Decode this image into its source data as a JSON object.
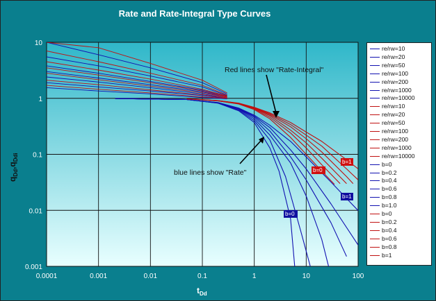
{
  "chart_data": {
    "type": "line",
    "title": "Rate and Rate-Integral Type Curves",
    "xlabel": "t",
    "xlabel_sub": "Dd",
    "ylabel": "q",
    "ylabel_sub1": "Dd",
    "ylabel_sep": ",",
    "ylabel_rest": "q",
    "ylabel_sub2": "Ddi",
    "x_scale": "log",
    "y_scale": "log",
    "xlim": [
      0.0001,
      100
    ],
    "ylim": [
      0.001,
      10
    ],
    "x_ticks": [
      "0.0001",
      "0.001",
      "0.01",
      "0.1",
      "1",
      "10",
      "100"
    ],
    "y_ticks": [
      "10",
      "1",
      "0.1",
      "0.01",
      "0.001"
    ],
    "grid": true,
    "legend_position": "right",
    "colors": {
      "plot_bg_top": "#2fb7c9",
      "plot_bg_bottom": "#e9ffff",
      "frame": "#0a7f8e",
      "rate": "#1010b0",
      "rate_integral": "#c01010"
    },
    "annotations": {
      "red_note": "Red lines show \"Rate-Integral\"",
      "blue_note": "blue lines show \"Rate\"",
      "tags": [
        "b=1",
        "b=0",
        "b=1",
        "b=0"
      ]
    },
    "series": [
      {
        "name": "re/rw=10",
        "group": "rate",
        "transient": true,
        "x": [
          0.0001,
          0.001,
          0.01,
          0.1,
          0.3
        ],
        "y": [
          1.55,
          1.35,
          1.2,
          1.03,
          0.98
        ]
      },
      {
        "name": "re/rw=20",
        "group": "rate",
        "transient": true,
        "x": [
          0.0001,
          0.001,
          0.01,
          0.1,
          0.3
        ],
        "y": [
          1.9,
          1.6,
          1.35,
          1.12,
          1.0
        ]
      },
      {
        "name": "re/rw=50",
        "group": "rate",
        "transient": true,
        "x": [
          0.0001,
          0.001,
          0.01,
          0.1,
          0.3
        ],
        "y": [
          2.4,
          1.95,
          1.55,
          1.2,
          1.02
        ]
      },
      {
        "name": "re/rw=100",
        "group": "rate",
        "transient": true,
        "x": [
          0.0001,
          0.001,
          0.01,
          0.1,
          0.3
        ],
        "y": [
          3.0,
          2.3,
          1.75,
          1.3,
          1.05
        ]
      },
      {
        "name": "re/rw=200",
        "group": "rate",
        "transient": true,
        "x": [
          0.0001,
          0.001,
          0.01,
          0.1,
          0.3
        ],
        "y": [
          3.8,
          2.8,
          2.0,
          1.4,
          1.08
        ]
      },
      {
        "name": "re/rw=1000",
        "group": "rate",
        "transient": true,
        "x": [
          0.0001,
          0.001,
          0.01,
          0.1,
          0.3
        ],
        "y": [
          5.5,
          3.8,
          2.5,
          1.6,
          1.12
        ]
      },
      {
        "name": "re/rw=10000",
        "group": "rate",
        "transient": true,
        "x": [
          0.0001,
          0.001,
          0.01,
          0.1,
          0.3
        ],
        "y": [
          10,
          6.0,
          3.5,
          1.9,
          1.2
        ]
      },
      {
        "name": "re/rw=10",
        "group": "integral",
        "transient": true,
        "x": [
          0.0001,
          0.001,
          0.01,
          0.1,
          0.3
        ],
        "y": [
          1.7,
          1.45,
          1.25,
          1.06,
          1.0
        ]
      },
      {
        "name": "re/rw=20",
        "group": "integral",
        "transient": true,
        "x": [
          0.0001,
          0.001,
          0.01,
          0.1,
          0.3
        ],
        "y": [
          2.1,
          1.75,
          1.42,
          1.15,
          1.02
        ]
      },
      {
        "name": "re/rw=50",
        "group": "integral",
        "transient": true,
        "x": [
          0.0001,
          0.001,
          0.01,
          0.1,
          0.3
        ],
        "y": [
          2.8,
          2.15,
          1.65,
          1.25,
          1.05
        ]
      },
      {
        "name": "re/rw=100",
        "group": "integral",
        "transient": true,
        "x": [
          0.0001,
          0.001,
          0.01,
          0.1,
          0.3
        ],
        "y": [
          3.5,
          2.6,
          1.9,
          1.35,
          1.08
        ]
      },
      {
        "name": "re/rw=200",
        "group": "integral",
        "transient": true,
        "x": [
          0.0001,
          0.001,
          0.01,
          0.1,
          0.3
        ],
        "y": [
          4.5,
          3.2,
          2.2,
          1.45,
          1.1
        ]
      },
      {
        "name": "re/rw=1000",
        "group": "integral",
        "transient": true,
        "x": [
          0.0001,
          0.001,
          0.01,
          0.1,
          0.3
        ],
        "y": [
          7.0,
          4.5,
          2.8,
          1.7,
          1.15
        ]
      },
      {
        "name": "re/rw=10000",
        "group": "integral",
        "transient": true,
        "x": [
          0.0001,
          0.001,
          0.01,
          0.1,
          0.3
        ],
        "y": [
          10,
          8.0,
          4.2,
          2.1,
          1.25
        ]
      },
      {
        "name": "b=0",
        "group": "rate",
        "x": [
          0.0021,
          0.05,
          0.2,
          0.5,
          1,
          2,
          3,
          5,
          6
        ],
        "y": [
          0.99,
          0.95,
          0.82,
          0.6,
          0.37,
          0.13,
          0.05,
          0.007,
          0.001
        ]
      },
      {
        "name": "b=0.2",
        "group": "rate",
        "x": [
          0.0021,
          0.05,
          0.2,
          0.5,
          1,
          2,
          4,
          8,
          12
        ],
        "y": [
          0.99,
          0.95,
          0.82,
          0.62,
          0.4,
          0.18,
          0.04,
          0.004,
          0.001
        ]
      },
      {
        "name": "b=0.4",
        "group": "rate",
        "x": [
          0.0021,
          0.05,
          0.2,
          0.5,
          1,
          2,
          5,
          10,
          20,
          27
        ],
        "y": [
          0.99,
          0.95,
          0.83,
          0.64,
          0.43,
          0.22,
          0.07,
          0.018,
          0.003,
          0.001
        ]
      },
      {
        "name": "b=0.6",
        "group": "rate",
        "x": [
          0.0021,
          0.05,
          0.2,
          0.5,
          1,
          2,
          5,
          10,
          30,
          60
        ],
        "y": [
          0.99,
          0.95,
          0.83,
          0.65,
          0.46,
          0.26,
          0.09,
          0.035,
          0.006,
          0.0015
        ]
      },
      {
        "name": "b=0.8",
        "group": "rate",
        "x": [
          0.0021,
          0.05,
          0.2,
          0.5,
          1,
          2,
          5,
          10,
          30,
          100
        ],
        "y": [
          0.99,
          0.95,
          0.84,
          0.66,
          0.48,
          0.3,
          0.12,
          0.055,
          0.013,
          0.0024
        ]
      },
      {
        "name": "b=1.0",
        "group": "rate",
        "x": [
          0.0021,
          0.05,
          0.2,
          0.5,
          1,
          2,
          5,
          10,
          30,
          100
        ],
        "y": [
          0.99,
          0.95,
          0.84,
          0.67,
          0.5,
          0.33,
          0.17,
          0.09,
          0.032,
          0.0099
        ]
      },
      {
        "name": "b=0",
        "group": "integral",
        "x": [
          0.05,
          0.2,
          0.5,
          1,
          2,
          5,
          10,
          20,
          35
        ],
        "y": [
          0.98,
          0.9,
          0.79,
          0.63,
          0.43,
          0.2,
          0.1,
          0.05,
          0.029
        ]
      },
      {
        "name": "b=0.2",
        "group": "integral",
        "x": [
          0.05,
          0.2,
          0.5,
          1,
          2,
          5,
          10,
          20,
          45
        ],
        "y": [
          0.98,
          0.9,
          0.8,
          0.65,
          0.46,
          0.24,
          0.13,
          0.065,
          0.03
        ]
      },
      {
        "name": "b=0.4",
        "group": "integral",
        "x": [
          0.05,
          0.2,
          0.5,
          1,
          2,
          5,
          10,
          20,
          60
        ],
        "y": [
          0.98,
          0.9,
          0.8,
          0.66,
          0.49,
          0.27,
          0.16,
          0.085,
          0.03
        ]
      },
      {
        "name": "b=0.6",
        "group": "integral",
        "x": [
          0.05,
          0.2,
          0.5,
          1,
          2,
          5,
          10,
          20,
          60,
          80
        ],
        "y": [
          0.98,
          0.91,
          0.81,
          0.67,
          0.51,
          0.31,
          0.19,
          0.11,
          0.04,
          0.03
        ]
      },
      {
        "name": "b=0.8",
        "group": "integral",
        "x": [
          0.05,
          0.2,
          0.5,
          1,
          2,
          5,
          10,
          20,
          60,
          100
        ],
        "y": [
          0.98,
          0.91,
          0.81,
          0.68,
          0.53,
          0.34,
          0.22,
          0.14,
          0.055,
          0.035
        ]
      },
      {
        "name": "b=1",
        "group": "integral",
        "x": [
          0.05,
          0.2,
          0.5,
          1,
          2,
          5,
          10,
          20,
          60,
          100
        ],
        "y": [
          0.98,
          0.91,
          0.82,
          0.69,
          0.55,
          0.37,
          0.25,
          0.17,
          0.08,
          0.055
        ]
      }
    ]
  }
}
